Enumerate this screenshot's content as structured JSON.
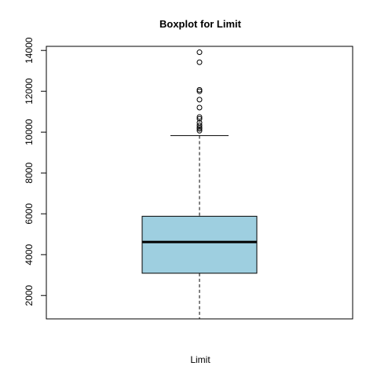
{
  "chart_data": {
    "type": "boxplot",
    "title": "Boxplot for  Limit",
    "xlabel": "Limit",
    "ylabel": "",
    "ylim": [
      855,
      14200
    ],
    "yticks": [
      2000,
      4000,
      6000,
      8000,
      10000,
      12000,
      14000
    ],
    "ytick_labels": [
      "2000",
      "4000",
      "6000",
      "8000",
      "10000",
      "12000",
      "14000"
    ],
    "box": {
      "whisker_low": 855,
      "q1": 3090,
      "median": 4620,
      "q3": 5880,
      "whisker_high": 9830
    },
    "outliers": [
      10070,
      10160,
      10230,
      10330,
      10460,
      10650,
      10740,
      11200,
      11590,
      12000,
      12070,
      13420,
      13910
    ],
    "fill_color": "#9ecfe0",
    "line_color": "#000000"
  }
}
